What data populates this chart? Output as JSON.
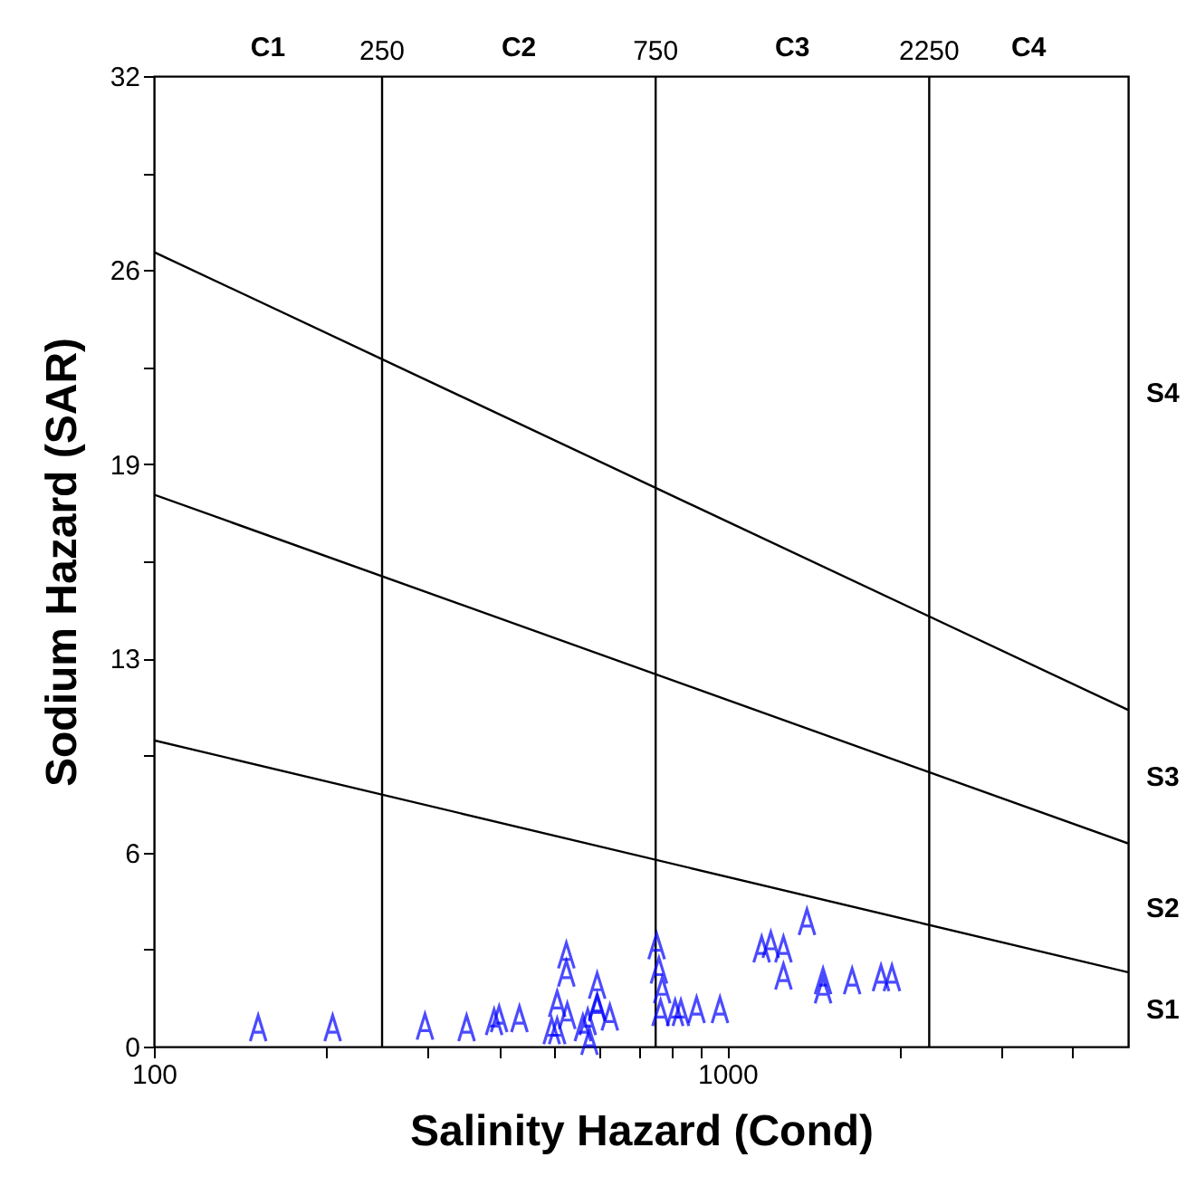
{
  "chart_data": {
    "type": "scatter",
    "xlabel": "Salinity Hazard (Cond)",
    "ylabel": "Sodium Hazard (SAR)",
    "log": "x",
    "grid": false,
    "xlim": [
      100,
      5000
    ],
    "xticks": [
      100,
      {
        "value": 200,
        "label": null
      },
      {
        "value": 300,
        "label": null
      },
      {
        "value": 400,
        "label": null
      },
      {
        "value": 500,
        "label": null
      },
      {
        "value": 600,
        "label": null
      },
      {
        "value": 700,
        "label": null
      },
      {
        "value": 800,
        "label": null
      },
      {
        "value": 900,
        "label": null
      },
      1000,
      {
        "value": 2000,
        "label": null
      },
      {
        "value": 3000,
        "label": null
      },
      {
        "value": 4000,
        "label": null
      }
    ],
    "ylim": [
      0,
      32
    ],
    "yticks": [
      0,
      {
        "value": 3.2,
        "label": null
      },
      {
        "value": 6.4,
        "label": "6"
      },
      {
        "value": 9.6,
        "label": null
      },
      {
        "value": 12.8,
        "label": "13"
      },
      {
        "value": 16,
        "label": null
      },
      {
        "value": 19.2,
        "label": "19"
      },
      {
        "value": 22.4,
        "label": null
      },
      {
        "value": 25.6,
        "label": "26"
      },
      {
        "value": 28.8,
        "label": null
      },
      32
    ],
    "series": [
      {
        "color": "#0000ff",
        "x": [
          152,
          205,
          297,
          351,
          392,
          400,
          434,
          494,
          505,
          524,
          524,
          560,
          571,
          593,
          593,
          624,
          505,
          526,
          575,
          593,
          753,
          760,
          770,
          765,
          811,
          830,
          884,
          971,
          1148,
          1191,
          1253,
          1253,
          1377,
          1469,
          1469,
          1651,
          1854,
          1937
        ],
        "values": [
          0.6,
          0.6,
          0.65,
          0.6,
          0.8,
          0.9,
          0.9,
          0.5,
          1.4,
          2.4,
          3.0,
          0.6,
          0.8,
          2.0,
          1.25,
          0.95,
          0.5,
          1.0,
          0.15,
          1.3,
          3.3,
          2.5,
          1.85,
          1.1,
          1.1,
          1.1,
          1.2,
          1.2,
          3.2,
          3.35,
          3.2,
          2.3,
          4.1,
          2.15,
          1.85,
          2.15,
          2.25,
          2.25
        ]
      },
      {
        "type": "line",
        "color": "#000000",
        "x": [
          100,
          5000
        ],
        "values": [
          10.1,
          2.45
        ]
      },
      {
        "type": "line",
        "color": "#000000",
        "x": [
          100,
          5000
        ],
        "values": [
          18.2,
          6.7
        ]
      },
      {
        "type": "line",
        "color": "#000000",
        "x": [
          100,
          5000
        ],
        "values": [
          26.2,
          11.1
        ]
      }
    ],
    "ref_lines": [
      {
        "axis": "x",
        "value": 250,
        "label": "250",
        "color": "#000000"
      },
      {
        "axis": "x",
        "value": 750,
        "label": "750",
        "color": "#000000"
      },
      {
        "axis": "x",
        "value": 2250,
        "label": "2250",
        "color": "#000000"
      }
    ],
    "annotations": [
      "C1",
      "C2",
      "C3",
      "C4",
      "S1",
      "S2",
      "S3",
      "S4"
    ]
  }
}
